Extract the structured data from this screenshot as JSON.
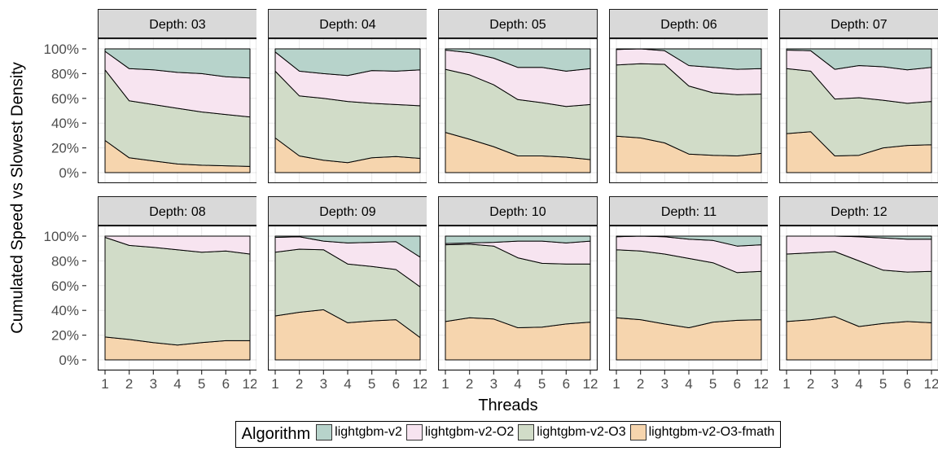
{
  "figure": {
    "y_axis_title": "Cumulated Speed vs Slowest Density",
    "x_axis_title": "Threads"
  },
  "legend": {
    "title": "Algorithm",
    "items": [
      {
        "label": "lightgbm-v2",
        "color": "#b7d3cb"
      },
      {
        "label": "lightgbm-v2-O2",
        "color": "#f7e4f0"
      },
      {
        "label": "lightgbm-v2-O3",
        "color": "#d1dcc8"
      },
      {
        "label": "lightgbm-v2-O3-fmath",
        "color": "#f6d5ae"
      }
    ]
  },
  "style": {
    "strip_fill": "#d9d9d9",
    "panel_border": "#1a1a1a",
    "grid_color": "#e9e9e9",
    "area_stroke": "#000000",
    "tick_color": "#333333",
    "tick_label_color": "#4d4d4d"
  },
  "chart_data": {
    "type": "area",
    "stacked": true,
    "normalized_percent": true,
    "ylim": [
      0,
      100
    ],
    "y_ticks": [
      0,
      20,
      40,
      60,
      80,
      100
    ],
    "y_tick_labels": [
      "0%",
      "20%",
      "40%",
      "60%",
      "80%",
      "100%"
    ],
    "x": [
      1,
      2,
      3,
      4,
      5,
      6,
      12
    ],
    "x_tick_labels": [
      "1",
      "2",
      "3",
      "4",
      "5",
      "6",
      "12"
    ],
    "xlabel": "Threads",
    "ylabel": "Cumulated Speed vs Slowest Density",
    "series_order_bottom_to_top": [
      "lightgbm-v2-O3-fmath",
      "lightgbm-v2-O3",
      "lightgbm-v2-O2",
      "lightgbm-v2"
    ],
    "facets": [
      {
        "label": "Depth: 03",
        "shares": {
          "lightgbm-v2-O3-fmath": [
            26,
            12,
            9.5,
            7,
            6,
            5.5,
            5
          ],
          "lightgbm-v2-O3": [
            57,
            46,
            45.5,
            45,
            43,
            41.5,
            40
          ],
          "lightgbm-v2-O2": [
            15,
            26,
            28,
            29,
            31,
            30.5,
            31.5
          ],
          "lightgbm-v2": [
            2,
            16,
            17,
            19,
            20,
            22.5,
            23.5
          ]
        }
      },
      {
        "label": "Depth: 04",
        "shares": {
          "lightgbm-v2-O3-fmath": [
            28,
            13.5,
            10,
            8,
            12,
            13,
            11.5
          ],
          "lightgbm-v2-O3": [
            54,
            48.5,
            50,
            49.5,
            44,
            42,
            42.5
          ],
          "lightgbm-v2-O2": [
            15.5,
            20,
            20,
            21,
            26.5,
            27,
            29
          ],
          "lightgbm-v2": [
            2.5,
            18,
            20,
            21.5,
            17.5,
            18,
            17
          ]
        }
      },
      {
        "label": "Depth: 05",
        "shares": {
          "lightgbm-v2-O3-fmath": [
            32.5,
            27,
            21,
            13.5,
            13.5,
            12.5,
            10.5
          ],
          "lightgbm-v2-O3": [
            51,
            52,
            50,
            45.5,
            43,
            41,
            44.5
          ],
          "lightgbm-v2-O2": [
            15.5,
            18,
            21.5,
            26,
            28.5,
            28.5,
            29
          ],
          "lightgbm-v2": [
            1,
            3,
            7.5,
            15,
            15,
            18,
            16
          ]
        }
      },
      {
        "label": "Depth: 06",
        "shares": {
          "lightgbm-v2-O3-fmath": [
            29.5,
            28,
            24,
            15,
            14,
            13.5,
            15.5
          ],
          "lightgbm-v2-O3": [
            57.5,
            60,
            63.5,
            55,
            50.5,
            49.5,
            48
          ],
          "lightgbm-v2-O2": [
            12.5,
            12,
            11,
            16.5,
            20.5,
            20.5,
            20.5
          ],
          "lightgbm-v2": [
            0.5,
            0,
            1.5,
            13.5,
            15,
            16.5,
            16
          ]
        }
      },
      {
        "label": "Depth: 07",
        "shares": {
          "lightgbm-v2-O3-fmath": [
            31.5,
            33,
            13.5,
            14,
            20,
            22,
            22.5
          ],
          "lightgbm-v2-O3": [
            52.5,
            49,
            46,
            46.5,
            38.5,
            34,
            35
          ],
          "lightgbm-v2-O2": [
            15,
            16.5,
            24,
            26,
            27,
            27,
            27.5
          ],
          "lightgbm-v2": [
            1,
            1.5,
            16.5,
            13.5,
            14.5,
            17,
            15
          ]
        }
      },
      {
        "label": "Depth: 08",
        "shares": {
          "lightgbm-v2-O3-fmath": [
            18.5,
            16.5,
            14,
            12,
            14,
            15.5,
            15.5
          ],
          "lightgbm-v2-O3": [
            80.5,
            76,
            77,
            77,
            73,
            72.5,
            70
          ],
          "lightgbm-v2-O2": [
            1,
            7.5,
            9,
            11,
            13,
            12,
            14.5
          ],
          "lightgbm-v2": [
            0,
            0,
            0,
            0,
            0,
            0,
            0
          ]
        }
      },
      {
        "label": "Depth: 09",
        "shares": {
          "lightgbm-v2-O3-fmath": [
            35.5,
            38.5,
            40.5,
            30,
            31.5,
            32.5,
            18
          ],
          "lightgbm-v2-O3": [
            51.5,
            51,
            48.5,
            47.5,
            44,
            40.5,
            41
          ],
          "lightgbm-v2-O2": [
            12,
            10,
            7,
            17,
            19.5,
            22.5,
            24
          ],
          "lightgbm-v2": [
            1,
            0.5,
            4,
            5.5,
            5,
            4.5,
            17
          ]
        }
      },
      {
        "label": "Depth: 10",
        "shares": {
          "lightgbm-v2-O3-fmath": [
            31,
            34,
            33,
            26,
            26.5,
            29,
            30.5
          ],
          "lightgbm-v2-O3": [
            62,
            59.5,
            59,
            56.5,
            51.5,
            48.5,
            47
          ],
          "lightgbm-v2-O2": [
            1,
            1,
            3,
            13.5,
            18,
            17,
            18.5
          ],
          "lightgbm-v2": [
            6,
            5.5,
            5,
            4,
            4,
            5.5,
            4
          ]
        }
      },
      {
        "label": "Depth: 11",
        "shares": {
          "lightgbm-v2-O3-fmath": [
            34,
            32.5,
            29,
            26,
            30.5,
            32,
            32.5
          ],
          "lightgbm-v2-O3": [
            55,
            55.5,
            56.5,
            56,
            48,
            38.5,
            39
          ],
          "lightgbm-v2-O2": [
            10.5,
            12,
            14,
            15.5,
            18,
            21.5,
            21.5
          ],
          "lightgbm-v2": [
            0.5,
            0,
            0.5,
            2.5,
            3.5,
            8,
            7
          ]
        }
      },
      {
        "label": "Depth: 12",
        "shares": {
          "lightgbm-v2-O3-fmath": [
            31,
            32.5,
            35,
            27,
            29.5,
            31,
            30
          ],
          "lightgbm-v2-O3": [
            54.5,
            54,
            52.5,
            53,
            43,
            40,
            41.5
          ],
          "lightgbm-v2-O2": [
            14.5,
            13.5,
            12.5,
            19.5,
            26,
            26.5,
            26
          ],
          "lightgbm-v2": [
            0,
            0,
            0,
            0.5,
            1.5,
            2.5,
            2.5
          ]
        }
      }
    ]
  }
}
